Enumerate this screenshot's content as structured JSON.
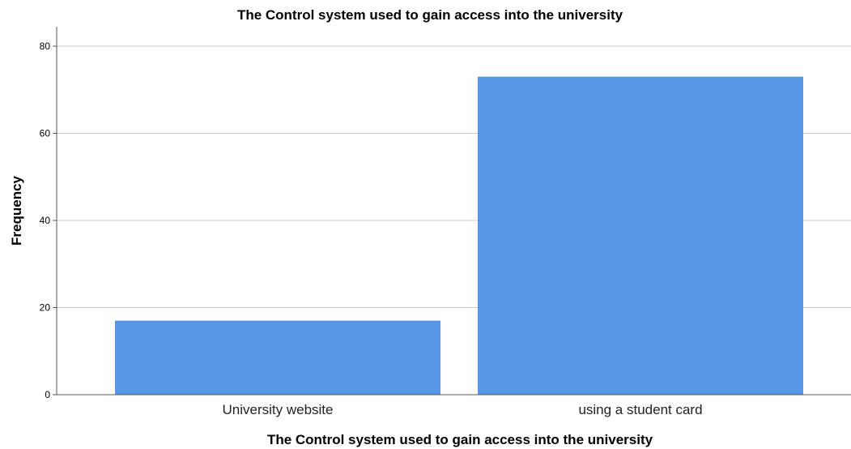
{
  "chart_data": {
    "type": "bar",
    "title": "The Control system used to gain access into the university",
    "xlabel": "The Control system used to gain access into the university",
    "ylabel": "Frequency",
    "categories": [
      "University website",
      "using a student card"
    ],
    "values": [
      17,
      73
    ],
    "ylim": [
      0,
      84
    ],
    "yticks": [
      0,
      20,
      40,
      60,
      80
    ],
    "grid": true,
    "bar_color": "#5696e4"
  }
}
